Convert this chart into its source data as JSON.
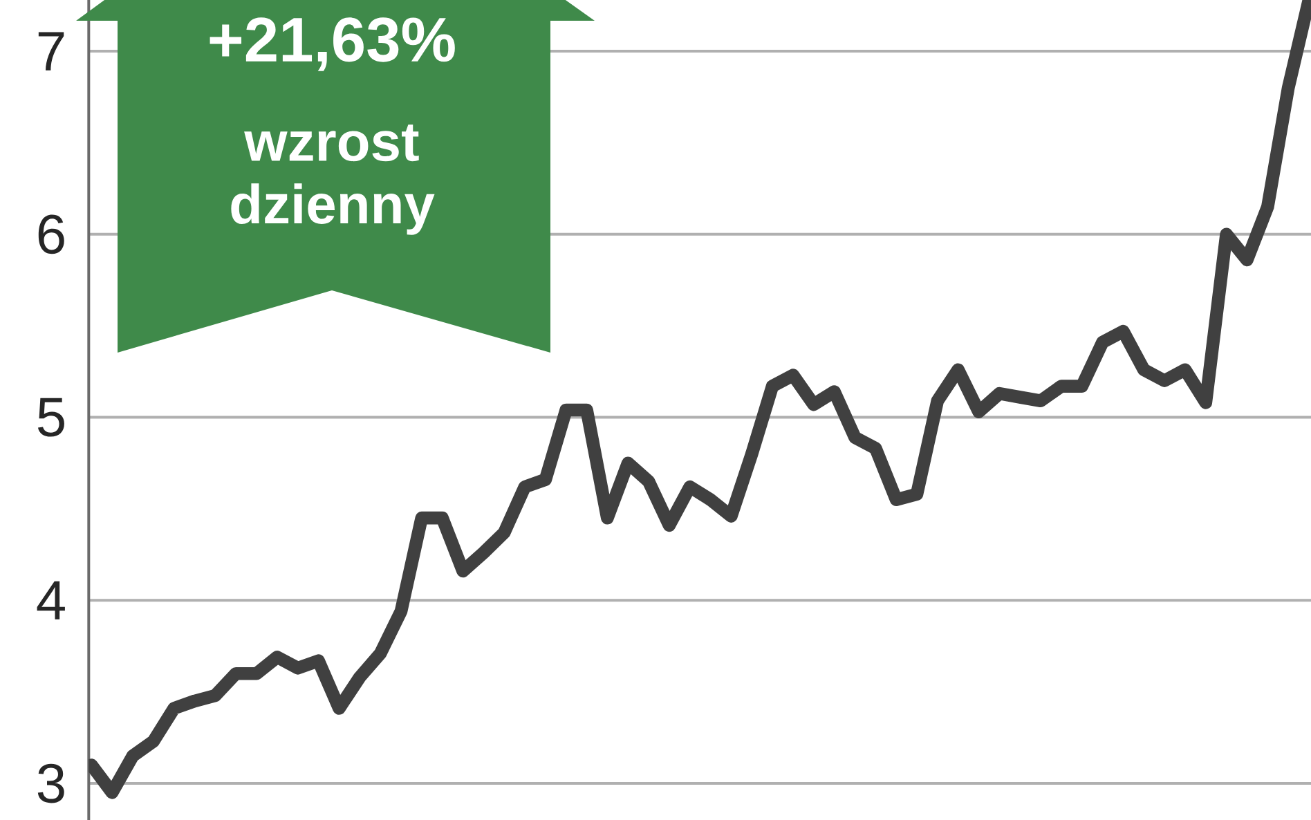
{
  "chart_data": {
    "type": "line",
    "categories": [
      null,
      null,
      null,
      null,
      null,
      null,
      null,
      null,
      null,
      null,
      null,
      null,
      null,
      null,
      null,
      null,
      null,
      null,
      null,
      null,
      null,
      null,
      null,
      null,
      null,
      null,
      null,
      null,
      null,
      null,
      null,
      null,
      null,
      null,
      null,
      null,
      null,
      null,
      null,
      null,
      null,
      null,
      null,
      null,
      null,
      null,
      null,
      null,
      null,
      null,
      null,
      null,
      null,
      null,
      null,
      null,
      null,
      null,
      null,
      null
    ],
    "series": [
      {
        "color": "#404040",
        "values": [
          3.1,
          2.95,
          3.15,
          3.23,
          3.41,
          3.45,
          3.48,
          3.6,
          3.6,
          3.69,
          3.63,
          3.67,
          3.41,
          3.58,
          3.71,
          3.94,
          4.45,
          4.45,
          4.16,
          4.26,
          4.37,
          4.62,
          4.66,
          5.04,
          5.04,
          4.45,
          4.75,
          4.65,
          4.41,
          4.62,
          4.55,
          4.46,
          4.8,
          5.17,
          5.23,
          5.07,
          5.14,
          4.89,
          4.83,
          4.55,
          4.58,
          5.09,
          5.26,
          5.03,
          5.13,
          5.11,
          5.09,
          5.17,
          5.17,
          5.41,
          5.47,
          5.26,
          5.2,
          5.26,
          5.08,
          6.0,
          5.86,
          6.15,
          6.8,
          7.28
        ]
      }
    ],
    "ylim": [
      2.8,
      7.28
    ],
    "yticks": [
      3,
      4,
      5,
      6,
      7
    ],
    "grid": "y",
    "tick_labels": "y",
    "marker": "none",
    "line_style": "solid",
    "annotations": [
      "+21,63%",
      "wzrost dzienny"
    ]
  }
}
